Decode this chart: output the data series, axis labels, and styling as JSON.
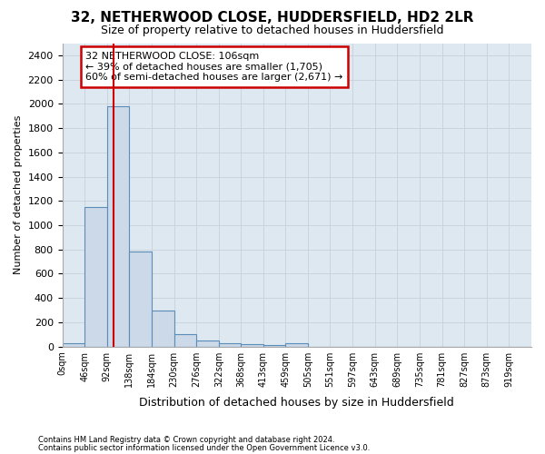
{
  "title1": "32, NETHERWOOD CLOSE, HUDDERSFIELD, HD2 2LR",
  "title2": "Size of property relative to detached houses in Huddersfield",
  "xlabel": "Distribution of detached houses by size in Huddersfield",
  "ylabel": "Number of detached properties",
  "footnote1": "Contains HM Land Registry data © Crown copyright and database right 2024.",
  "footnote2": "Contains public sector information licensed under the Open Government Licence v3.0.",
  "annotation_line1": "32 NETHERWOOD CLOSE: 106sqm",
  "annotation_line2": "← 39% of detached houses are smaller (1,705)",
  "annotation_line3": "60% of semi-detached houses are larger (2,671) →",
  "property_size": 106,
  "bin_edges": [
    0,
    46,
    92,
    138,
    184,
    230,
    276,
    322,
    368,
    413,
    459,
    505,
    551,
    597,
    643,
    689,
    735,
    781,
    827,
    873,
    919,
    965
  ],
  "bar_heights": [
    30,
    1150,
    1980,
    780,
    300,
    100,
    50,
    30,
    20,
    10,
    30,
    0,
    0,
    0,
    0,
    0,
    0,
    0,
    0,
    0,
    0
  ],
  "tick_labels": [
    "0sqm",
    "46sqm",
    "92sqm",
    "138sqm",
    "184sqm",
    "230sqm",
    "276sqm",
    "322sqm",
    "368sqm",
    "413sqm",
    "459sqm",
    "505sqm",
    "551sqm",
    "597sqm",
    "643sqm",
    "689sqm",
    "735sqm",
    "781sqm",
    "827sqm",
    "873sqm",
    "919sqm"
  ],
  "bar_color": "#ccd9e8",
  "bar_edge_color": "#5b8db8",
  "vline_color": "#cc0000",
  "annotation_box_color": "#cc0000",
  "annotation_fill_color": "#ffffff",
  "grid_color": "#c8d0da",
  "bg_color": "#dde8f0",
  "fig_bg_color": "#ffffff",
  "ylim": [
    0,
    2500
  ],
  "yticks": [
    0,
    200,
    400,
    600,
    800,
    1000,
    1200,
    1400,
    1600,
    1800,
    2000,
    2200,
    2400
  ]
}
